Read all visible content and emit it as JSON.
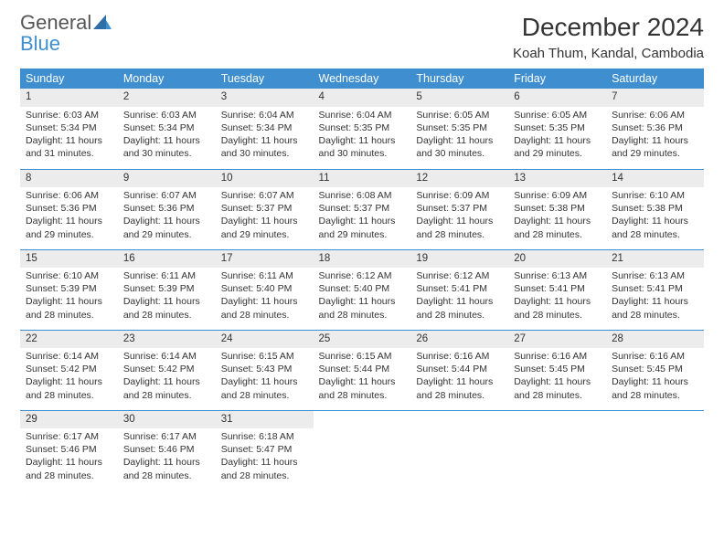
{
  "brand": {
    "word1": "General",
    "word2": "Blue"
  },
  "title": "December 2024",
  "location": "Koah Thum, Kandal, Cambodia",
  "colors": {
    "accent": "#3e8ed0",
    "daynum_bg": "#ececec",
    "text": "#333333"
  },
  "day_headers": [
    "Sunday",
    "Monday",
    "Tuesday",
    "Wednesday",
    "Thursday",
    "Friday",
    "Saturday"
  ],
  "weeks": [
    [
      {
        "n": "1",
        "sunrise": "6:03 AM",
        "sunset": "5:34 PM",
        "daylight": "11 hours and 31 minutes."
      },
      {
        "n": "2",
        "sunrise": "6:03 AM",
        "sunset": "5:34 PM",
        "daylight": "11 hours and 30 minutes."
      },
      {
        "n": "3",
        "sunrise": "6:04 AM",
        "sunset": "5:34 PM",
        "daylight": "11 hours and 30 minutes."
      },
      {
        "n": "4",
        "sunrise": "6:04 AM",
        "sunset": "5:35 PM",
        "daylight": "11 hours and 30 minutes."
      },
      {
        "n": "5",
        "sunrise": "6:05 AM",
        "sunset": "5:35 PM",
        "daylight": "11 hours and 30 minutes."
      },
      {
        "n": "6",
        "sunrise": "6:05 AM",
        "sunset": "5:35 PM",
        "daylight": "11 hours and 29 minutes."
      },
      {
        "n": "7",
        "sunrise": "6:06 AM",
        "sunset": "5:36 PM",
        "daylight": "11 hours and 29 minutes."
      }
    ],
    [
      {
        "n": "8",
        "sunrise": "6:06 AM",
        "sunset": "5:36 PM",
        "daylight": "11 hours and 29 minutes."
      },
      {
        "n": "9",
        "sunrise": "6:07 AM",
        "sunset": "5:36 PM",
        "daylight": "11 hours and 29 minutes."
      },
      {
        "n": "10",
        "sunrise": "6:07 AM",
        "sunset": "5:37 PM",
        "daylight": "11 hours and 29 minutes."
      },
      {
        "n": "11",
        "sunrise": "6:08 AM",
        "sunset": "5:37 PM",
        "daylight": "11 hours and 29 minutes."
      },
      {
        "n": "12",
        "sunrise": "6:09 AM",
        "sunset": "5:37 PM",
        "daylight": "11 hours and 28 minutes."
      },
      {
        "n": "13",
        "sunrise": "6:09 AM",
        "sunset": "5:38 PM",
        "daylight": "11 hours and 28 minutes."
      },
      {
        "n": "14",
        "sunrise": "6:10 AM",
        "sunset": "5:38 PM",
        "daylight": "11 hours and 28 minutes."
      }
    ],
    [
      {
        "n": "15",
        "sunrise": "6:10 AM",
        "sunset": "5:39 PM",
        "daylight": "11 hours and 28 minutes."
      },
      {
        "n": "16",
        "sunrise": "6:11 AM",
        "sunset": "5:39 PM",
        "daylight": "11 hours and 28 minutes."
      },
      {
        "n": "17",
        "sunrise": "6:11 AM",
        "sunset": "5:40 PM",
        "daylight": "11 hours and 28 minutes."
      },
      {
        "n": "18",
        "sunrise": "6:12 AM",
        "sunset": "5:40 PM",
        "daylight": "11 hours and 28 minutes."
      },
      {
        "n": "19",
        "sunrise": "6:12 AM",
        "sunset": "5:41 PM",
        "daylight": "11 hours and 28 minutes."
      },
      {
        "n": "20",
        "sunrise": "6:13 AM",
        "sunset": "5:41 PM",
        "daylight": "11 hours and 28 minutes."
      },
      {
        "n": "21",
        "sunrise": "6:13 AM",
        "sunset": "5:41 PM",
        "daylight": "11 hours and 28 minutes."
      }
    ],
    [
      {
        "n": "22",
        "sunrise": "6:14 AM",
        "sunset": "5:42 PM",
        "daylight": "11 hours and 28 minutes."
      },
      {
        "n": "23",
        "sunrise": "6:14 AM",
        "sunset": "5:42 PM",
        "daylight": "11 hours and 28 minutes."
      },
      {
        "n": "24",
        "sunrise": "6:15 AM",
        "sunset": "5:43 PM",
        "daylight": "11 hours and 28 minutes."
      },
      {
        "n": "25",
        "sunrise": "6:15 AM",
        "sunset": "5:44 PM",
        "daylight": "11 hours and 28 minutes."
      },
      {
        "n": "26",
        "sunrise": "6:16 AM",
        "sunset": "5:44 PM",
        "daylight": "11 hours and 28 minutes."
      },
      {
        "n": "27",
        "sunrise": "6:16 AM",
        "sunset": "5:45 PM",
        "daylight": "11 hours and 28 minutes."
      },
      {
        "n": "28",
        "sunrise": "6:16 AM",
        "sunset": "5:45 PM",
        "daylight": "11 hours and 28 minutes."
      }
    ],
    [
      {
        "n": "29",
        "sunrise": "6:17 AM",
        "sunset": "5:46 PM",
        "daylight": "11 hours and 28 minutes."
      },
      {
        "n": "30",
        "sunrise": "6:17 AM",
        "sunset": "5:46 PM",
        "daylight": "11 hours and 28 minutes."
      },
      {
        "n": "31",
        "sunrise": "6:18 AM",
        "sunset": "5:47 PM",
        "daylight": "11 hours and 28 minutes."
      },
      null,
      null,
      null,
      null
    ]
  ],
  "labels": {
    "sunrise": "Sunrise:",
    "sunset": "Sunset:",
    "daylight": "Daylight:"
  }
}
